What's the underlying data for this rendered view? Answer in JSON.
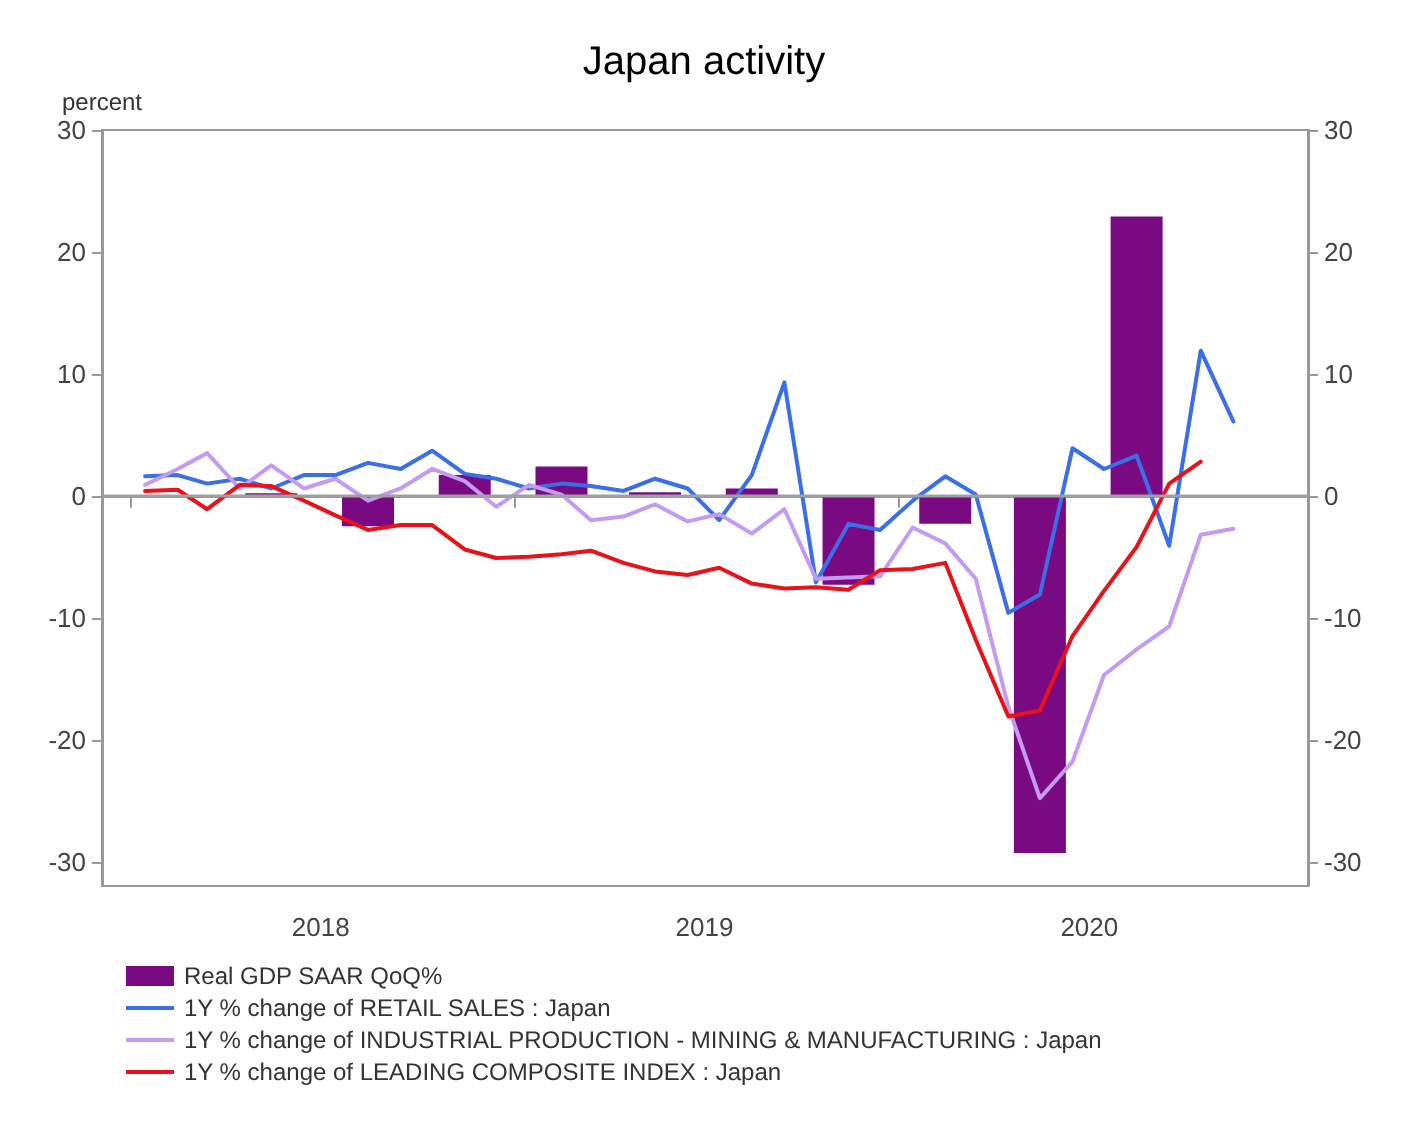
{
  "chart_data": {
    "type": "line",
    "title": "Japan activity",
    "ylabel": "percent",
    "xlim": [
      "2017-12-05",
      "2021-01-25"
    ],
    "xticks": [
      {
        "value": "2018-01-01",
        "label": null
      },
      {
        "value": "2018-07-01",
        "label": "2018"
      },
      {
        "value": "2019-01-01",
        "label": null
      },
      {
        "value": "2019-07-01",
        "label": "2019"
      },
      {
        "value": "2020-01-01",
        "label": null
      },
      {
        "value": "2020-07-01",
        "label": "2020"
      }
    ],
    "ylim": [
      -32,
      30
    ],
    "yticks": [
      -30,
      -20,
      -10,
      0,
      10,
      20,
      30
    ],
    "y2lim": [
      -32,
      30
    ],
    "y2ticks": [
      -30,
      -20,
      -10,
      0,
      10,
      20,
      30
    ],
    "grid": false,
    "legend": "bottom left",
    "marker": "none",
    "line_style": "solid",
    "ref_lines": [
      {
        "axis": "y",
        "value": 0,
        "color": "#a0a0a0"
      }
    ],
    "series": [
      {
        "name": "Real GDP SAAR QoQ%",
        "type": "bar",
        "color": "#7a0a82",
        "x": [
          "2018-05-15",
          "2018-08-15",
          "2018-11-15",
          "2019-02-15",
          "2019-05-15",
          "2019-08-15",
          "2019-11-15",
          "2020-02-15",
          "2020-05-15",
          "2020-08-15"
        ],
        "values": [
          0.2,
          -2.5,
          1.7,
          2.4,
          0.3,
          0.6,
          -7.3,
          -2.3,
          -29.3,
          22.9
        ]
      },
      {
        "name": "1Y % change of RETAIL SALES : Japan",
        "color": "#3a6fe8",
        "x": [
          "2018-01-15",
          "2018-02-15",
          "2018-03-15",
          "2018-04-15",
          "2018-05-15",
          "2018-06-15",
          "2018-07-15",
          "2018-08-15",
          "2018-09-15",
          "2018-10-15",
          "2018-11-15",
          "2018-12-15",
          "2019-01-15",
          "2019-02-15",
          "2019-03-15",
          "2019-04-15",
          "2019-05-15",
          "2019-06-15",
          "2019-07-15",
          "2019-08-15",
          "2019-09-15",
          "2019-10-15",
          "2019-11-15",
          "2019-12-15",
          "2020-01-15",
          "2020-02-15",
          "2020-03-15",
          "2020-04-15",
          "2020-05-15",
          "2020-06-15",
          "2020-07-15",
          "2020-08-15",
          "2020-09-15",
          "2020-10-15",
          "2020-11-15"
        ],
        "values": [
          1.6,
          1.7,
          1.0,
          1.4,
          0.6,
          1.7,
          1.7,
          2.7,
          2.2,
          3.7,
          1.8,
          1.4,
          0.6,
          1.0,
          0.8,
          0.4,
          1.4,
          0.6,
          -2.0,
          1.7,
          9.3,
          -7.1,
          -2.3,
          -2.8,
          -0.4,
          1.6,
          0.1,
          -9.6,
          -8.1,
          3.9,
          2.2,
          3.3,
          -4.1,
          11.9,
          6.1
        ]
      },
      {
        "name": "1Y % change of INDUSTRIAL PRODUCTION - MINING & MANUFACTURING : Japan",
        "color": "#c49bf2",
        "x": [
          "2018-01-15",
          "2018-02-15",
          "2018-03-15",
          "2018-04-15",
          "2018-05-15",
          "2018-06-15",
          "2018-07-15",
          "2018-08-15",
          "2018-09-15",
          "2018-10-15",
          "2018-11-15",
          "2018-12-15",
          "2019-01-15",
          "2019-02-15",
          "2019-03-15",
          "2019-04-15",
          "2019-05-15",
          "2019-06-15",
          "2019-07-15",
          "2019-08-15",
          "2019-09-15",
          "2019-10-15",
          "2019-11-15",
          "2019-12-15",
          "2020-01-15",
          "2020-02-15",
          "2020-03-15",
          "2020-04-15",
          "2020-05-15",
          "2020-06-15",
          "2020-07-15",
          "2020-08-15",
          "2020-09-15",
          "2020-10-15",
          "2020-11-15"
        ],
        "values": [
          0.9,
          2.2,
          3.5,
          0.6,
          2.5,
          0.6,
          1.4,
          -0.4,
          0.6,
          2.2,
          1.2,
          -0.9,
          0.9,
          0.1,
          -2.0,
          -1.7,
          -0.7,
          -2.1,
          -1.5,
          -3.1,
          -1.1,
          -6.8,
          -6.7,
          -6.6,
          -2.6,
          -3.9,
          -6.8,
          -17.3,
          -24.8,
          -21.8,
          -14.7,
          -12.6,
          -10.7,
          -3.2,
          -2.7
        ]
      },
      {
        "name": "1Y % change of LEADING COMPOSITE INDEX : Japan",
        "color": "#e8121a",
        "x": [
          "2018-01-15",
          "2018-02-15",
          "2018-03-15",
          "2018-04-15",
          "2018-05-15",
          "2018-06-15",
          "2018-07-15",
          "2018-08-15",
          "2018-09-15",
          "2018-10-15",
          "2018-11-15",
          "2018-12-15",
          "2019-01-15",
          "2019-02-15",
          "2019-03-15",
          "2019-04-15",
          "2019-05-15",
          "2019-06-15",
          "2019-07-15",
          "2019-08-15",
          "2019-09-15",
          "2019-10-15",
          "2019-11-15",
          "2019-12-15",
          "2020-01-15",
          "2020-02-15",
          "2020-03-15",
          "2020-04-15",
          "2020-05-15",
          "2020-06-15",
          "2020-07-15",
          "2020-08-15",
          "2020-09-15",
          "2020-10-15"
        ],
        "values": [
          0.4,
          0.5,
          -1.1,
          0.9,
          0.8,
          -0.4,
          -1.6,
          -2.8,
          -2.4,
          -2.4,
          -4.4,
          -5.1,
          -5.0,
          -4.8,
          -4.5,
          -5.5,
          -6.2,
          -6.5,
          -5.9,
          -7.2,
          -7.6,
          -7.5,
          -7.7,
          -6.1,
          -6.0,
          -5.5,
          -11.8,
          -18.1,
          -17.6,
          -11.5,
          -7.8,
          -4.2,
          1.0,
          2.8
        ]
      }
    ]
  }
}
